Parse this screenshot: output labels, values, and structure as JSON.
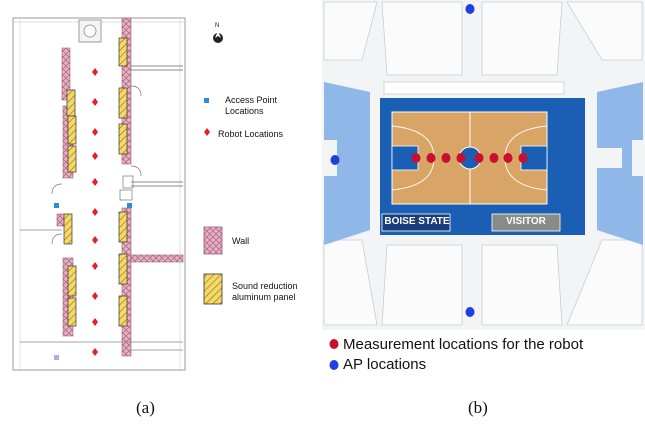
{
  "panel_a": {
    "compass_label": "N",
    "legend": {
      "access_point": "Access Point Locations",
      "robot": "Robot Locations",
      "wall": "Wall",
      "panel": "Sound reduction aluminum panel"
    },
    "caption": "(a)",
    "colors": {
      "access_point": "#2b8fd6",
      "robot": "#e0202e",
      "wall": "#dca0b4",
      "panel": "#f2cd4e"
    }
  },
  "panel_b": {
    "home_team": "BOISE STATE",
    "visitor": "VISITOR",
    "legend": {
      "measurement": "Measurement locations for the robot",
      "ap": "AP locations"
    },
    "caption": "(b)",
    "colors": {
      "measurement": "#c8102e",
      "ap": "#1f3fe0",
      "court_border": "#1a5fb4",
      "court_wood": "#d9a566",
      "stands": "#8fb8e8"
    }
  }
}
